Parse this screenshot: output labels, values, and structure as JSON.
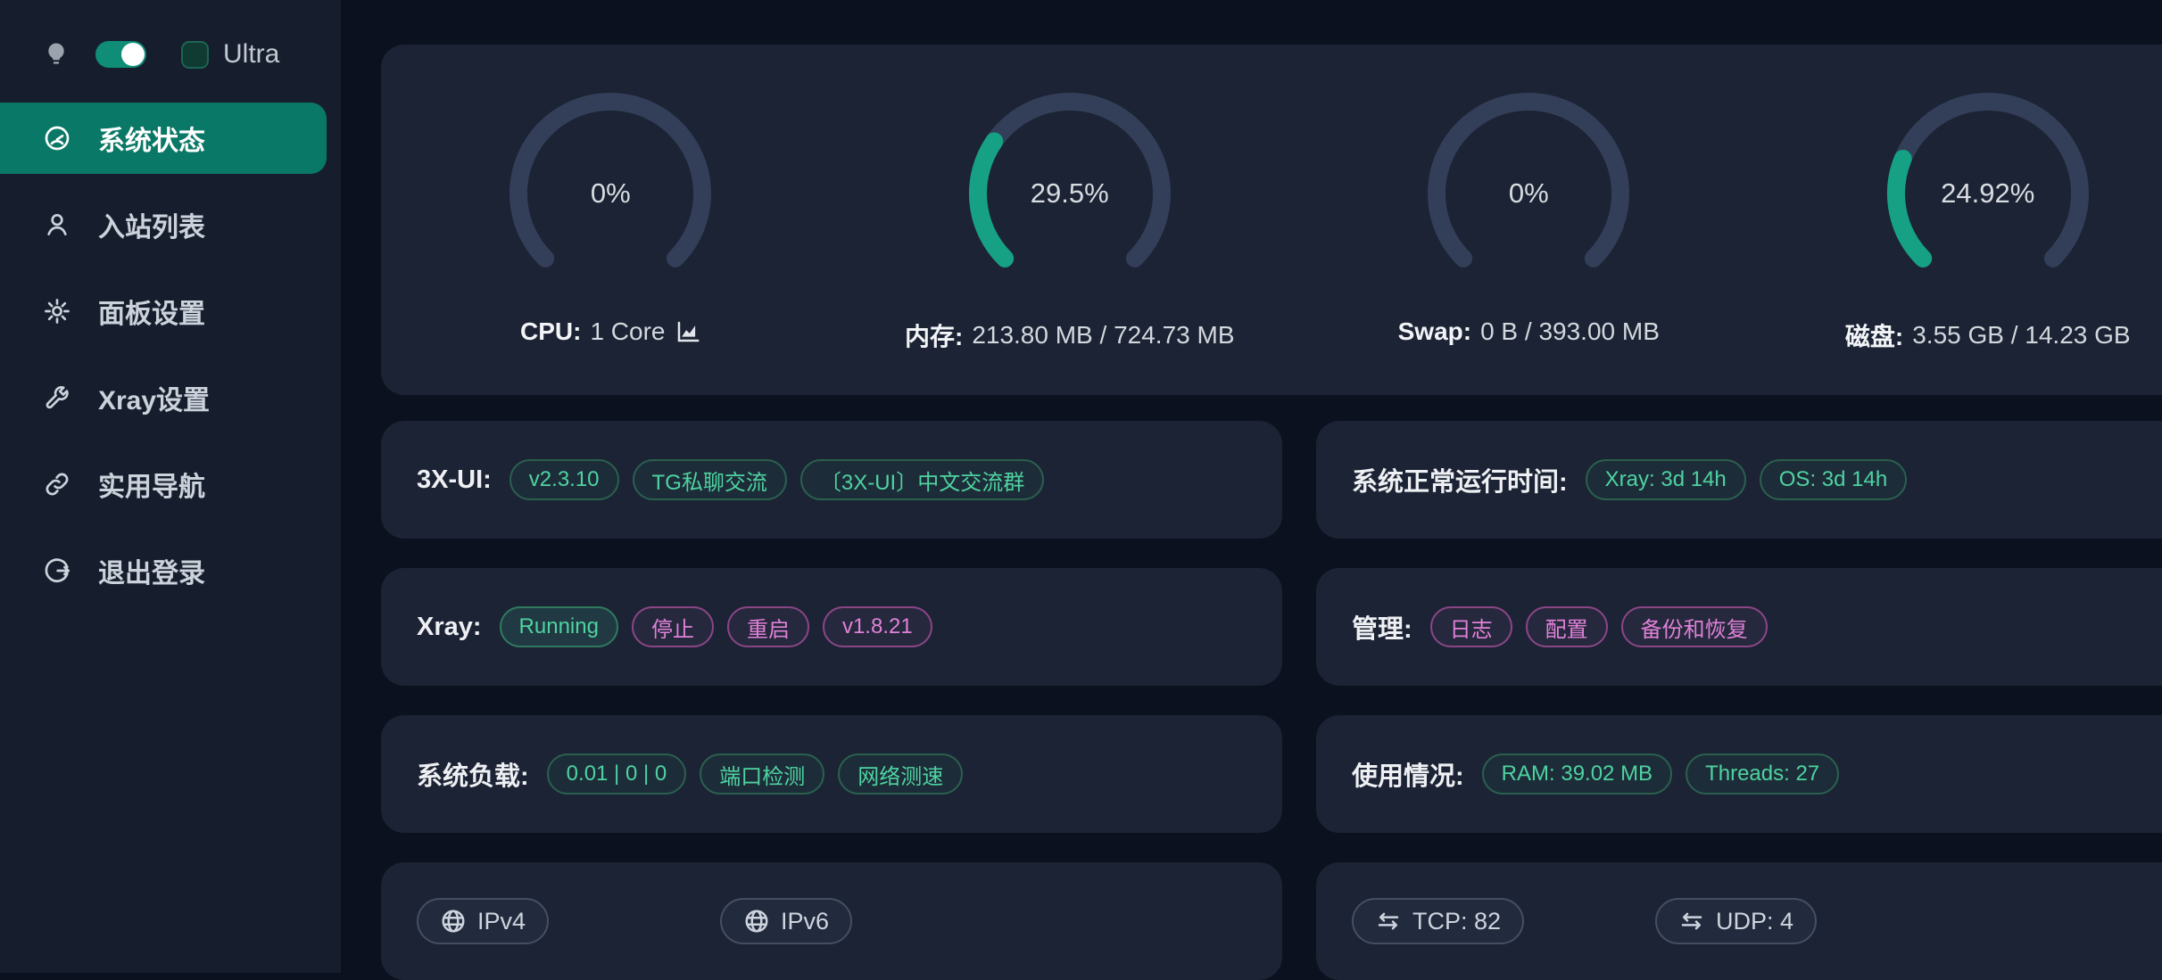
{
  "colors": {
    "page_bg": "#0b111f",
    "sidebar_bg": "#161e2d",
    "card_bg": "#1b2334",
    "active_menu_bg": "#0a7866",
    "toggle_green": "#0f8d76",
    "gauge_green": "#16a185",
    "gauge_track": "#333e58",
    "tag_green_text": "#4ed3a0",
    "tag_magenta_text": "#df82d8"
  },
  "sidebar": {
    "ultra_label": "Ultra",
    "theme_toggle_on": true,
    "ultra_checked": false,
    "items": [
      {
        "slug": "system-status",
        "label": "系统状态",
        "icon": "dashboard-icon",
        "active": true
      },
      {
        "slug": "inbounds-list",
        "label": "入站列表",
        "icon": "user-icon",
        "active": false
      },
      {
        "slug": "panel-settings",
        "label": "面板设置",
        "icon": "gear-icon",
        "active": false
      },
      {
        "slug": "xray-settings",
        "label": "Xray设置",
        "icon": "wrench-icon",
        "active": false
      },
      {
        "slug": "useful-navigation",
        "label": "实用导航",
        "icon": "link-icon",
        "active": false
      },
      {
        "slug": "logout",
        "label": "退出登录",
        "icon": "logout-icon",
        "active": false
      }
    ]
  },
  "gauges": [
    {
      "slug": "cpu",
      "percent": 0,
      "percent_label": "0%",
      "label_bold": "CPU:",
      "label_text": "1 Core",
      "chart_icon": true
    },
    {
      "slug": "memory",
      "percent": 29.5,
      "percent_label": "29.5%",
      "label_bold": "内存:",
      "label_text": "213.80 MB / 724.73 MB",
      "chart_icon": false
    },
    {
      "slug": "swap",
      "percent": 0,
      "percent_label": "0%",
      "label_bold": "Swap:",
      "label_text": "0 B / 393.00 MB",
      "chart_icon": false
    },
    {
      "slug": "disk",
      "percent": 24.92,
      "percent_label": "24.92%",
      "label_bold": "磁盘:",
      "label_text": "3.55 GB / 14.23 GB",
      "chart_icon": false
    }
  ],
  "cards": [
    {
      "slug": "panel-info",
      "label": "3X-UI:",
      "tags": [
        {
          "text": "v2.3.10",
          "style": "green"
        },
        {
          "text": "TG私聊交流",
          "style": "green"
        },
        {
          "text": "〔3X-UI〕中文交流群",
          "style": "green"
        }
      ]
    },
    {
      "slug": "uptime",
      "label": "系统正常运行时间:",
      "tags": [
        {
          "text": "Xray: 3d 14h",
          "style": "green"
        },
        {
          "text": "OS: 3d 14h",
          "style": "green"
        }
      ]
    },
    {
      "slug": "xray-status",
      "label": "Xray:",
      "tags": [
        {
          "text": "Running",
          "style": "green-filled"
        },
        {
          "text": "停止",
          "style": "magenta"
        },
        {
          "text": "重启",
          "style": "magenta"
        },
        {
          "text": "v1.8.21",
          "style": "magenta"
        }
      ]
    },
    {
      "slug": "admin",
      "label": "管理:",
      "tags": [
        {
          "text": "日志",
          "style": "magenta"
        },
        {
          "text": "配置",
          "style": "magenta"
        },
        {
          "text": "备份和恢复",
          "style": "magenta"
        }
      ]
    },
    {
      "slug": "system-load",
      "label": "系统负载:",
      "tags": [
        {
          "text": "0.01 | 0 | 0",
          "style": "green"
        },
        {
          "text": "端口检测",
          "style": "green"
        },
        {
          "text": "网络测速",
          "style": "green"
        }
      ]
    },
    {
      "slug": "usage",
      "label": "使用情况:",
      "tags": [
        {
          "text": "RAM: 39.02 MB",
          "style": "green"
        },
        {
          "text": "Threads: 27",
          "style": "green"
        }
      ]
    },
    {
      "slug": "ip-info",
      "pills": [
        {
          "text": "IPv4",
          "icon": "globe-icon"
        },
        {
          "text": "IPv6",
          "icon": "globe-icon"
        }
      ]
    },
    {
      "slug": "connections",
      "pills": [
        {
          "text": "TCP: 82",
          "icon": "swap-icon"
        },
        {
          "text": "UDP: 4",
          "icon": "swap-icon"
        }
      ]
    }
  ]
}
